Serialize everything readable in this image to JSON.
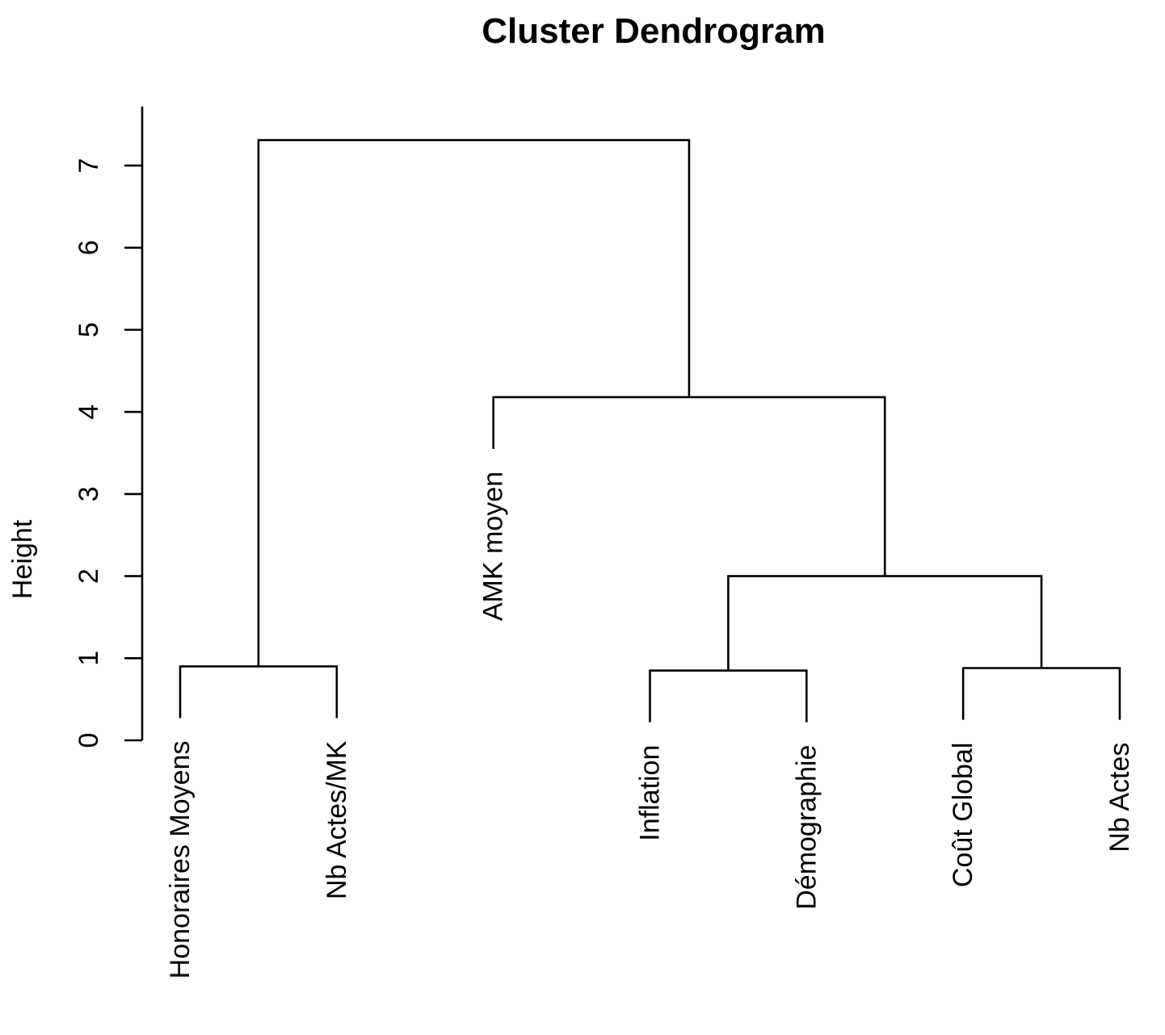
{
  "chart_data": {
    "type": "dendrogram",
    "title": "Cluster Dendrogram",
    "ylabel": "Height",
    "yticks": [
      0,
      1,
      2,
      3,
      4,
      5,
      6,
      7
    ],
    "ylim": [
      0,
      7.72
    ],
    "grid": false,
    "orientation": "vertical",
    "line_color": "#000000",
    "background_color": "#ffffff",
    "leaves": [
      "Honoraires Moyens",
      "Nb Actes/MK",
      "AMK moyen",
      "Inflation",
      "Démographie",
      "Coût Global",
      "Nb Actes"
    ],
    "merges": [
      {
        "id": "m1",
        "children": [
          "Honoraires Moyens",
          "Nb Actes/MK"
        ],
        "height": 0.9
      },
      {
        "id": "m2",
        "children": [
          "Inflation",
          "Démographie"
        ],
        "height": 0.85
      },
      {
        "id": "m3",
        "children": [
          "Coût Global",
          "Nb Actes"
        ],
        "height": 0.88
      },
      {
        "id": "m4",
        "children": [
          "m2",
          "m3"
        ],
        "height": 2.0
      },
      {
        "id": "m5",
        "children": [
          "AMK moyen",
          "m4"
        ],
        "height": 4.18
      },
      {
        "id": "m6",
        "children": [
          "m1",
          "m5"
        ],
        "height": 7.31
      }
    ],
    "leaf_hang": 0.63
  }
}
